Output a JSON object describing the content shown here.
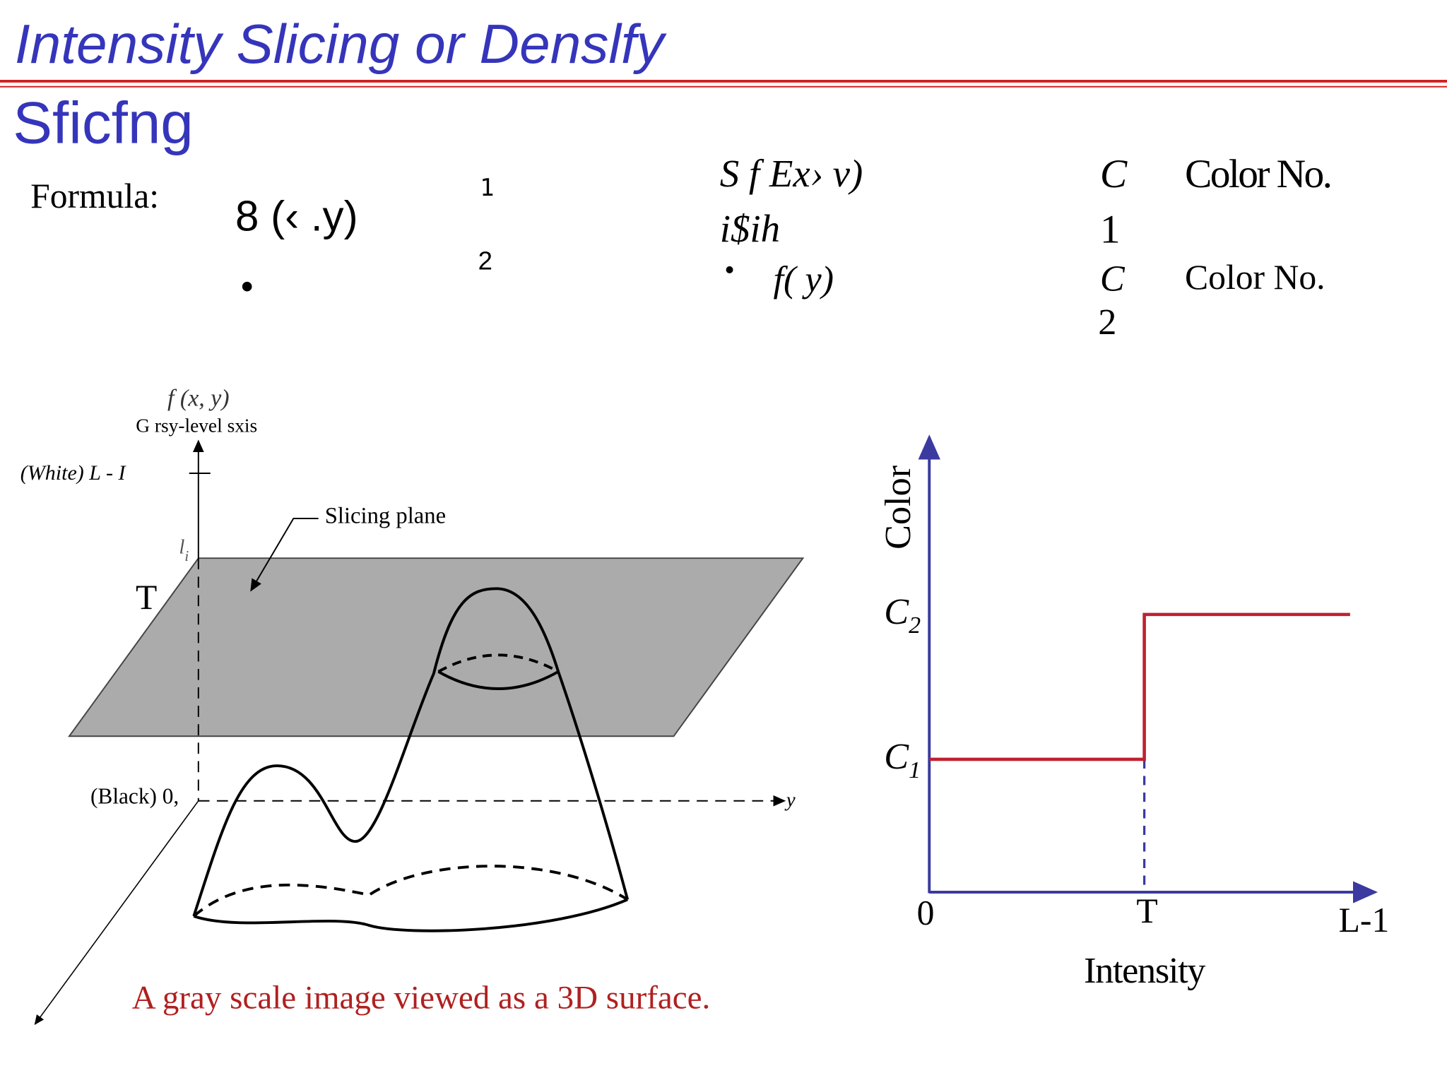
{
  "header": {
    "title": "Intensity Slicing or Denslfy",
    "subtitle": "Sficfng"
  },
  "formula": {
    "label": "Formula:",
    "lhs": "8 (‹ .y)",
    "one": "1",
    "two": "2",
    "bullet": "•",
    "case1": "S   f Ex› v)",
    "case1b": "i$ih",
    "case2_bullet": "•",
    "case2": "f(    y)",
    "c1": "C",
    "c1_num": "1",
    "c1_text": "Color No.",
    "c2": "C",
    "c2_num": "2",
    "c2_text": "Color No."
  },
  "surface": {
    "axis_label": "f (x, y)",
    "axis_name": "G  rsy-level  sxis",
    "white": "(White)  L  -   I",
    "li": "l",
    "li_sub": "i",
    "t_label": "T",
    "plane": "Slicing plane",
    "black": "(Black)  0,",
    "y_axis": "y",
    "caption": "A gray scale image viewed as a 3D surface."
  },
  "graph": {
    "y_label": "Color",
    "c2": "C",
    "c2_sub": "2",
    "c1": "C",
    "c1_sub": "1",
    "x0": "0",
    "xT": "T",
    "xL": "L-1",
    "x_label": "Intensity"
  }
}
